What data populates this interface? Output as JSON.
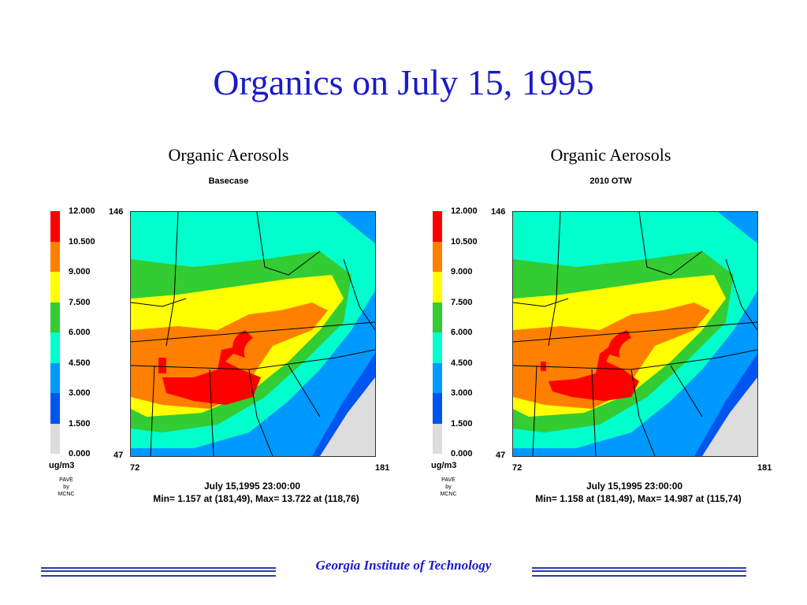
{
  "slide": {
    "title": "Organics on July 15, 1995",
    "footer": "Georgia Institute of Technology"
  },
  "legend": {
    "labels": [
      "12.000",
      "10.500",
      "9.000",
      "7.500",
      "6.000",
      "4.500",
      "3.000",
      "1.500",
      "0.000"
    ],
    "colors": [
      "#ff0000",
      "#ff8000",
      "#ffff00",
      "#33cc33",
      "#00ffcc",
      "#0099ff",
      "#0055ee",
      "#dddddd"
    ],
    "unit": "ug/m3",
    "credit": [
      "PAVE",
      "by",
      "MCNC"
    ]
  },
  "colors": {
    "c12": "#ff0000",
    "c10": "#ff8000",
    "c9": "#ffff00",
    "c7": "#33cc33",
    "c6": "#00ffcc",
    "c4": "#0099ff",
    "c3": "#0055ee",
    "c0": "#dddddd",
    "title": "#1a1acc"
  },
  "panels": [
    {
      "title": "Organic Aerosols",
      "subtitle": "Basecase",
      "y_top": "146",
      "y_bottom": "47",
      "x_left": "72",
      "x_right": "181",
      "datetime": "July 15,1995 23:00:00",
      "minmax": "Min=   1.157 at (181,49), Max=  13.722 at (118,76)"
    },
    {
      "title": "Organic Aerosols",
      "subtitle": "2010 OTW",
      "y_top": "146",
      "y_bottom": "47",
      "x_left": "72",
      "x_right": "181",
      "datetime": "July 15,1995 23:00:00",
      "minmax": "Min=   1.158 at (181,49), Max=  14.987 at (115,74)"
    }
  ]
}
